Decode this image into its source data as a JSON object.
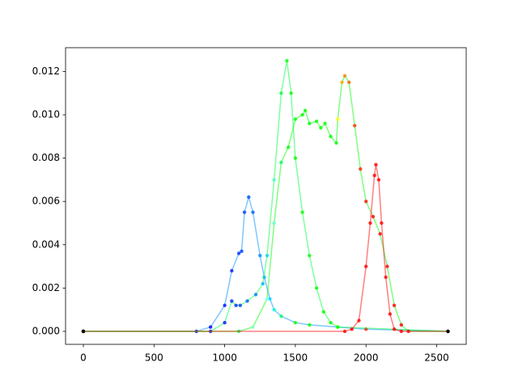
{
  "chart_data": {
    "type": "scatter",
    "xlim": [
      -126,
      2709
    ],
    "ylim": [
      -0.0006,
      0.0131
    ],
    "xticks": [
      0,
      500,
      1000,
      1500,
      2000,
      2500
    ],
    "yticks": [
      {
        "value": 0,
        "label": "0.000"
      },
      {
        "value": 0.002,
        "label": "0.002"
      },
      {
        "value": 0.004,
        "label": "0.004"
      },
      {
        "value": 0.006,
        "label": "0.006"
      },
      {
        "value": 0.008,
        "label": "0.008"
      },
      {
        "value": 0.01,
        "label": "0.010"
      },
      {
        "value": 0.012,
        "label": "0.012"
      }
    ],
    "series": [
      {
        "x": [
          0,
          800,
          900,
          1000,
          1050,
          1100,
          1120,
          1140,
          1170,
          1200,
          1250,
          1280,
          1320,
          1350,
          1400,
          1500,
          1600,
          1800,
          2000,
          2580
        ],
        "values": [
          0,
          0,
          0.0002,
          0.0012,
          0.0028,
          0.0036,
          0.0037,
          0.0055,
          0.0062,
          0.0055,
          0.0035,
          0.0025,
          0.0015,
          0.001,
          0.0007,
          0.0004,
          0.0003,
          0.0002,
          0.0001,
          0
        ],
        "colors": [
          "#000000",
          "#0000ff",
          "#0000ff",
          "#0010ff",
          "#0018ff",
          "#0030ff",
          "#0038ff",
          "#0040ff",
          "#0050ff",
          "#0060ff",
          "#0090ff",
          "#00b0ff",
          "#00d8ff",
          "#00ffcc",
          "#00ff60",
          "#00ff00",
          "#00ff00",
          "#80ff00",
          "#ff2000",
          "#ff0000"
        ]
      },
      {
        "x": [
          0,
          900,
          1000,
          1050,
          1080,
          1110,
          1160,
          1220,
          1270,
          1300,
          1350,
          1400,
          1440,
          1470,
          1500,
          1550,
          1600,
          1650,
          1700,
          1750,
          1800,
          2580
        ],
        "values": [
          0,
          0,
          0.0004,
          0.0014,
          0.0012,
          0.0012,
          0.0014,
          0.0017,
          0.0022,
          0.0035,
          0.007,
          0.011,
          0.0125,
          0.011,
          0.008,
          0.0055,
          0.0035,
          0.002,
          0.0009,
          0.0004,
          0.0002,
          0
        ],
        "colors": [
          "#000000",
          "#0000ff",
          "#0010ff",
          "#0020ff",
          "#0030ff",
          "#0040ff",
          "#0058ff",
          "#0080ff",
          "#00b0ff",
          "#00d0ff",
          "#40ffc0",
          "#00ff40",
          "#00ff00",
          "#00ff00",
          "#00ff00",
          "#00ff00",
          "#00ff00",
          "#00ff00",
          "#00ff00",
          "#00ff00",
          "#00ff00",
          "#00ff00"
        ]
      },
      {
        "x": [
          0,
          1100,
          1200,
          1300,
          1350,
          1400,
          1450,
          1500,
          1550,
          1570,
          1600,
          1650,
          1680,
          1710,
          1750,
          1790,
          1800,
          1830,
          1850,
          1880,
          1920,
          1960,
          2000,
          2050,
          2100,
          2150,
          2200,
          2250,
          2300,
          2580
        ],
        "values": [
          0,
          0,
          0.0002,
          0.0015,
          0.005,
          0.0078,
          0.0085,
          0.0098,
          0.01,
          0.0102,
          0.0096,
          0.0097,
          0.0094,
          0.0096,
          0.009,
          0.0087,
          0.0098,
          0.0115,
          0.0118,
          0.0115,
          0.0095,
          0.0075,
          0.006,
          0.0053,
          0.0045,
          0.003,
          0.0012,
          0.0003,
          0,
          0
        ],
        "colors": [
          "#000000",
          "#00ff40",
          "#80ffc0",
          "#80fff0",
          "#60ffd0",
          "#00ff60",
          "#00ff00",
          "#00ff00",
          "#00ff00",
          "#00ff00",
          "#00ff00",
          "#00ff00",
          "#00ff00",
          "#00ff00",
          "#00ff00",
          "#00ff00",
          "#ffff00",
          "#ffa000",
          "#ff8000",
          "#ff6000",
          "#ff3000",
          "#ff2000",
          "#ff1000",
          "#ff0000",
          "#ff0000",
          "#ff0000",
          "#ff0000",
          "#ff0000",
          "#ff0000",
          "#000000"
        ]
      },
      {
        "x": [
          0,
          1850,
          1900,
          1950,
          2000,
          2030,
          2060,
          2070,
          2090,
          2110,
          2140,
          2170,
          2200,
          2250,
          2580
        ],
        "values": [
          0,
          0,
          0.0001,
          0.0005,
          0.003,
          0.005,
          0.0072,
          0.0077,
          0.007,
          0.005,
          0.0025,
          0.0008,
          0.0001,
          0,
          0
        ],
        "colors": [
          "#000000",
          "#ff0000",
          "#ff0000",
          "#ff0000",
          "#ff0000",
          "#ff0000",
          "#ff0000",
          "#ff0000",
          "#ff0000",
          "#ff0000",
          "#ff0000",
          "#ff0000",
          "#ff0000",
          "#ff0000",
          "#000000"
        ]
      }
    ]
  }
}
